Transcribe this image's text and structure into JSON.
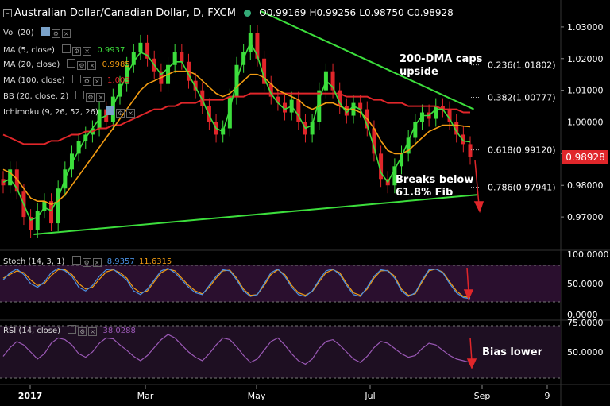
{
  "header": {
    "symbol": "Australian Dollar/Canadian Dollar, D, FXCM",
    "open": "O0.99169",
    "high": "H0.99256",
    "low": "L0.98750",
    "close": "C0.98928"
  },
  "indicators": [
    {
      "label": "Vol (20)",
      "value": "",
      "color": "#ffffff"
    },
    {
      "label": "MA (5, close)",
      "value": "0.9937",
      "color": "#3cde3c"
    },
    {
      "label": "MA (20, close)",
      "value": "0.9985",
      "color": "#f39c12"
    },
    {
      "label": "MA (100, close)",
      "value": "1.003",
      "color": "#e0262a"
    },
    {
      "label": "BB (20, close, 2)",
      "value": "",
      "color": "#ffffff"
    },
    {
      "label": "Ichimoku (9, 26, 52, 26)",
      "value": "",
      "color": "#ffffff"
    }
  ],
  "price_badge": "0.98928",
  "annotations": {
    "dma_line1": "200-DMA caps",
    "dma_line2": "upside",
    "break_line1": "Breaks below",
    "break_line2": "61.8% Fib",
    "bias": "Bias lower"
  },
  "fib_levels": [
    {
      "label": "0.236(1.01802)",
      "value": 1.01802
    },
    {
      "label": "0.382(1.00777)",
      "value": 1.00777
    },
    {
      "label": "0.618(0.99120)",
      "value": 0.9912
    },
    {
      "label": "0.786(0.97941)",
      "value": 0.97941
    }
  ],
  "stoch": {
    "label": "Stoch (14, 3, 1)",
    "k": "8.9357",
    "d": "11.6315"
  },
  "rsi": {
    "label": "RSI (14, close)",
    "value": "38.0288"
  },
  "chart_data": {
    "type": "candlestick",
    "x_ticks": [
      "2017",
      "Mar",
      "May",
      "Jul",
      "Sep",
      "9"
    ],
    "price_axis": {
      "ticks": [
        "1.03000",
        "1.02000",
        "1.01000",
        "1.00000",
        "0.99000",
        "0.98000",
        "0.97000"
      ],
      "range": [
        0.962,
        1.037
      ]
    },
    "price_close_path": [
      0.98,
      0.985,
      0.978,
      0.97,
      0.966,
      0.972,
      0.975,
      0.968,
      0.979,
      0.985,
      0.99,
      0.994,
      0.996,
      0.998,
      1.004,
      1.0,
      1.008,
      1.012,
      1.018,
      1.022,
      1.025,
      1.02,
      1.016,
      1.012,
      1.018,
      1.022,
      1.019,
      1.013,
      1.01,
      1.005,
      1.0,
      0.996,
      0.998,
      1.008,
      1.018,
      1.022,
      1.028,
      1.02,
      1.012,
      1.008,
      1.006,
      1.003,
      1.007,
      1.0,
      0.996,
      1.0,
      1.01,
      1.016,
      1.01,
      1.005,
      1.002,
      1.006,
      1.004,
      0.998,
      0.99,
      0.982,
      0.98,
      0.986,
      0.99,
      0.995,
      1.0,
      1.003,
      1.001,
      1.005,
      1.004,
      1.0,
      0.996,
      0.993,
      0.989
    ],
    "ma5": [
      0.981,
      0.982,
      0.979,
      0.974,
      0.969,
      0.97,
      0.973,
      0.972,
      0.976,
      0.982,
      0.987,
      0.991,
      0.995,
      0.998,
      1.001,
      1.002,
      1.005,
      1.01,
      1.015,
      1.019,
      1.022,
      1.021,
      1.018,
      1.015,
      1.017,
      1.019,
      1.019,
      1.015,
      1.011,
      1.007,
      1.002,
      0.998,
      0.997,
      1.004,
      1.013,
      1.02,
      1.025,
      1.021,
      1.014,
      1.009,
      1.006,
      1.004,
      1.005,
      1.002,
      0.998,
      0.999,
      1.007,
      1.013,
      1.011,
      1.006,
      1.003,
      1.005,
      1.004,
      0.999,
      0.992,
      0.984,
      0.981,
      0.985,
      0.989,
      0.994,
      0.999,
      1.002,
      1.002,
      1.004,
      1.004,
      1.001,
      0.997,
      0.994,
      0.9937
    ],
    "ma20": [
      0.985,
      0.984,
      0.982,
      0.979,
      0.976,
      0.975,
      0.975,
      0.974,
      0.975,
      0.977,
      0.98,
      0.983,
      0.986,
      0.989,
      0.992,
      0.995,
      0.998,
      1.001,
      1.004,
      1.007,
      1.01,
      1.012,
      1.013,
      1.014,
      1.015,
      1.016,
      1.016,
      1.016,
      1.015,
      1.013,
      1.011,
      1.009,
      1.008,
      1.009,
      1.011,
      1.013,
      1.015,
      1.015,
      1.014,
      1.012,
      1.01,
      1.009,
      1.008,
      1.007,
      1.005,
      1.004,
      1.005,
      1.006,
      1.006,
      1.005,
      1.004,
      1.004,
      1.003,
      1.001,
      0.998,
      0.994,
      0.991,
      0.99,
      0.99,
      0.991,
      0.993,
      0.995,
      0.997,
      0.998,
      0.999,
      0.999,
      0.999,
      0.9987,
      0.9985
    ],
    "ma100": [
      0.996,
      0.995,
      0.994,
      0.993,
      0.993,
      0.993,
      0.993,
      0.994,
      0.994,
      0.995,
      0.996,
      0.996,
      0.997,
      0.997,
      0.998,
      0.998,
      0.999,
      0.999,
      1.0,
      1.001,
      1.002,
      1.003,
      1.004,
      1.004,
      1.005,
      1.005,
      1.006,
      1.006,
      1.006,
      1.007,
      1.007,
      1.007,
      1.007,
      1.008,
      1.008,
      1.008,
      1.009,
      1.009,
      1.009,
      1.009,
      1.009,
      1.009,
      1.009,
      1.009,
      1.009,
      1.009,
      1.009,
      1.009,
      1.009,
      1.009,
      1.008,
      1.008,
      1.008,
      1.008,
      1.007,
      1.007,
      1.006,
      1.006,
      1.006,
      1.005,
      1.005,
      1.005,
      1.005,
      1.005,
      1.004,
      1.004,
      1.004,
      1.003,
      1.003
    ],
    "trendlines": [
      {
        "name": "upper",
        "from": [
          0.465,
          1.035
        ],
        "to": [
          0.845,
          1.004
        ],
        "color": "#3cde3c"
      },
      {
        "name": "lower",
        "from": [
          0.06,
          0.9645
        ],
        "to": [
          0.85,
          0.977
        ],
        "color": "#3cde3c"
      }
    ],
    "stoch_axis": {
      "ticks": [
        "100.0000",
        "50.0000",
        "0.0000"
      ],
      "range": [
        0,
        100
      ]
    },
    "stoch_k": [
      60,
      80,
      90,
      75,
      50,
      40,
      55,
      80,
      92,
      85,
      70,
      40,
      30,
      45,
      70,
      88,
      90,
      75,
      60,
      30,
      20,
      35,
      60,
      85,
      92,
      80,
      60,
      40,
      25,
      20,
      45,
      70,
      88,
      85,
      60,
      30,
      15,
      20,
      50,
      80,
      90,
      70,
      40,
      20,
      15,
      30,
      60,
      85,
      90,
      75,
      45,
      20,
      15,
      40,
      70,
      88,
      85,
      65,
      30,
      15,
      25,
      60,
      88,
      90,
      80,
      50,
      25,
      12,
      8.9
    ],
    "stoch_d": [
      65,
      75,
      85,
      80,
      60,
      45,
      50,
      72,
      88,
      88,
      75,
      50,
      35,
      40,
      62,
      82,
      88,
      80,
      65,
      38,
      25,
      30,
      55,
      80,
      90,
      85,
      65,
      45,
      30,
      22,
      40,
      65,
      85,
      87,
      65,
      35,
      18,
      20,
      45,
      75,
      88,
      75,
      45,
      25,
      18,
      28,
      55,
      80,
      88,
      80,
      50,
      25,
      18,
      35,
      65,
      85,
      86,
      70,
      35,
      18,
      22,
      55,
      85,
      90,
      82,
      55,
      30,
      15,
      11.6
    ],
    "rsi_axis": {
      "ticks": [
        "75.0000",
        "50.0000"
      ],
      "range": [
        20,
        80
      ]
    },
    "rsi_values": [
      45,
      55,
      62,
      58,
      50,
      42,
      48,
      60,
      66,
      64,
      58,
      48,
      44,
      50,
      60,
      66,
      65,
      58,
      52,
      45,
      40,
      46,
      55,
      64,
      70,
      66,
      58,
      50,
      44,
      40,
      48,
      58,
      66,
      64,
      56,
      46,
      38,
      42,
      52,
      62,
      66,
      58,
      48,
      40,
      36,
      42,
      54,
      62,
      64,
      58,
      50,
      42,
      38,
      45,
      55,
      62,
      60,
      54,
      48,
      44,
      46,
      54,
      60,
      58,
      52,
      46,
      42,
      40,
      38
    ]
  }
}
